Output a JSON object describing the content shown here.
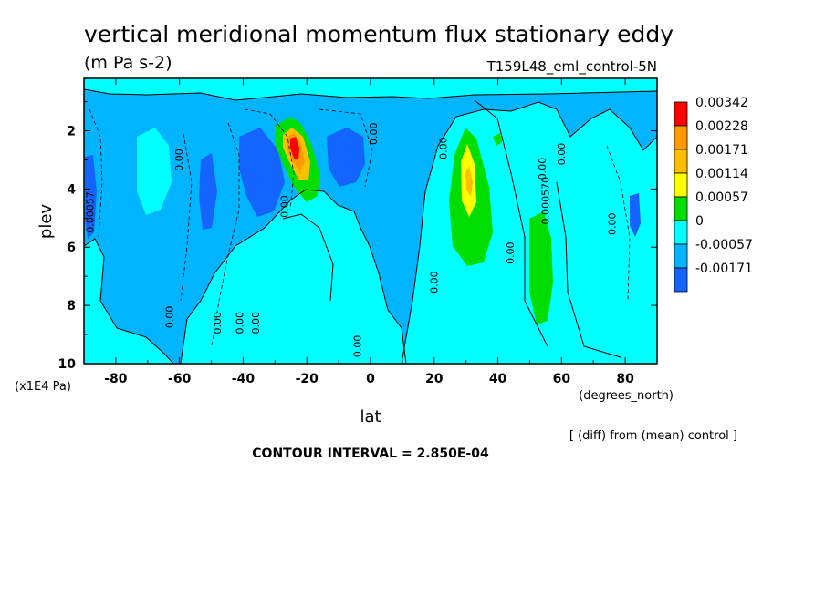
{
  "chart_data": {
    "type": "heatmap",
    "title": "vertical meridional momentum flux stationary eddy",
    "units": "(m Pa s-2)",
    "run_label": "T159L48_eml_control-5N",
    "xlabel": "lat",
    "x_units": "(degrees_north)",
    "ylabel": "plev",
    "y_units": "(x1E4 Pa)",
    "xlim": [
      -90,
      90
    ],
    "ylim": [
      10,
      0.2
    ],
    "x_ticks": [
      "-80",
      "-60",
      "-40",
      "-20",
      "0",
      "20",
      "40",
      "60",
      "80"
    ],
    "x_tick_values": [
      -80,
      -60,
      -40,
      -20,
      0,
      20,
      40,
      60,
      80
    ],
    "y_ticks": [
      "2",
      "4",
      "6",
      "8",
      "10"
    ],
    "y_tick_values": [
      2,
      4,
      6,
      8,
      10
    ],
    "footnote": "[ (diff) from (mean) control ]",
    "contour_interval": "CONTOUR INTERVAL = 2.850E-04",
    "legend": [
      {
        "label": "0.00342",
        "color": "#ff0000"
      },
      {
        "label": "0.00228",
        "color": "#ff9a00"
      },
      {
        "label": "0.00171",
        "color": "#ffbe00"
      },
      {
        "label": "0.00114",
        "color": "#ffff00"
      },
      {
        "label": "0.00057",
        "color": "#00dd00"
      },
      {
        "label": "0",
        "color": "#00ffff"
      },
      {
        "label": "-0.00057",
        "color": "#00b4ff"
      },
      {
        "label": "-0.00171",
        "color": "#1464ff"
      }
    ],
    "contour_labels": [
      {
        "text": "0.00",
        "lat": -59,
        "p": 3.0
      },
      {
        "text": "0.00",
        "lat": -26,
        "p": 4.6
      },
      {
        "text": "0.00057",
        "lat": -87,
        "p": 4.8
      },
      {
        "text": "0.00",
        "lat": -62,
        "p": 8.4
      },
      {
        "text": "0.00",
        "lat": -47,
        "p": 8.6
      },
      {
        "text": "0.00",
        "lat": -40,
        "p": 8.6
      },
      {
        "text": "0.00",
        "lat": -35,
        "p": 8.6
      },
      {
        "text": "0.00",
        "lat": 2,
        "p": 2.1
      },
      {
        "text": "0.00",
        "lat": -3,
        "p": 9.4
      },
      {
        "text": "0.00",
        "lat": 24,
        "p": 2.6
      },
      {
        "text": "0.00",
        "lat": 21,
        "p": 7.2
      },
      {
        "text": "0.00",
        "lat": 45,
        "p": 6.2
      },
      {
        "text": "0.00",
        "lat": 55,
        "p": 3.3
      },
      {
        "text": "0.00",
        "lat": 61,
        "p": 2.8
      },
      {
        "text": "0.00",
        "lat": 77,
        "p": 5.2
      },
      {
        "text": "0.000570",
        "lat": 56,
        "p": 4.4
      }
    ]
  }
}
